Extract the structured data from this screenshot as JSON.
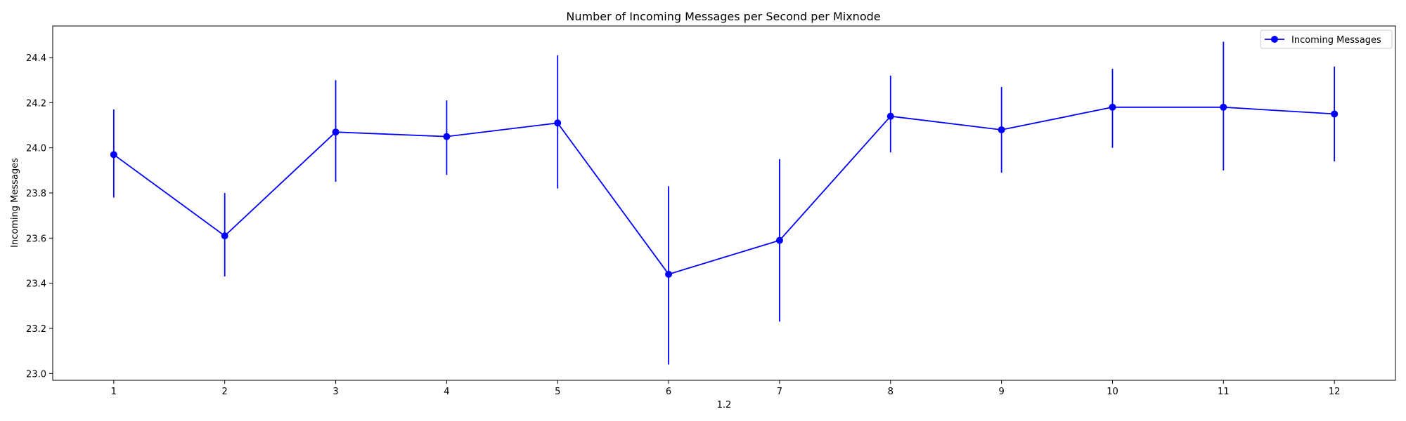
{
  "chart_data": {
    "type": "line",
    "title": "Number of Incoming Messages per Second per Mixnode",
    "xlabel": "1.2",
    "ylabel": "Incoming Messages",
    "x": [
      1,
      2,
      3,
      4,
      5,
      6,
      7,
      8,
      9,
      10,
      11,
      12
    ],
    "x_tick_labels": [
      "1",
      "2",
      "3",
      "4",
      "5",
      "6",
      "7",
      "8",
      "9",
      "10",
      "11",
      "12"
    ],
    "xlim": [
      0.45,
      12.55
    ],
    "ylim": [
      22.97,
      24.54
    ],
    "y_ticks": [
      23.0,
      23.2,
      23.4,
      23.6,
      23.8,
      24.0,
      24.2,
      24.4
    ],
    "y_tick_labels": [
      "23.0",
      "23.2",
      "23.4",
      "23.6",
      "23.8",
      "24.0",
      "24.2",
      "24.4"
    ],
    "grid": false,
    "legend_position": "top-right",
    "series": [
      {
        "name": "Incoming Messages",
        "color": "#0000ff",
        "marker": "circle",
        "values": [
          23.97,
          23.61,
          24.07,
          24.05,
          24.11,
          23.44,
          23.59,
          24.14,
          24.08,
          24.18,
          24.18,
          24.15
        ],
        "error_low": [
          23.78,
          23.43,
          23.85,
          23.88,
          23.82,
          23.04,
          23.23,
          23.98,
          23.89,
          24.0,
          23.9,
          23.94
        ],
        "error_high": [
          24.17,
          23.8,
          24.3,
          24.21,
          24.41,
          23.83,
          23.95,
          24.32,
          24.27,
          24.35,
          24.47,
          24.36
        ]
      }
    ]
  }
}
